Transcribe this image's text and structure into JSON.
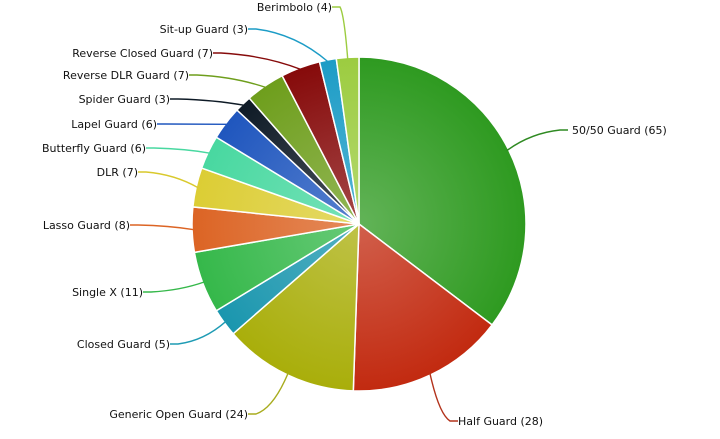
{
  "chart_data": {
    "type": "pie",
    "title": "",
    "start_angle_deg": 0,
    "direction": "clockwise",
    "slices": [
      {
        "label": "50/50 Guard",
        "value": 65,
        "text": "50/50 Guard (65)",
        "color": "#2e9a20",
        "line": "#2f8a22"
      },
      {
        "label": "Half Guard",
        "value": 28,
        "text": "Half Guard (28)",
        "color": "#c22a10",
        "line": "#b3331c"
      },
      {
        "label": "Generic Open Guard",
        "value": 24,
        "text": "Generic Open Guard (24)",
        "color": "#a9ae0a",
        "line": "#a8ac1e"
      },
      {
        "label": "Closed Guard",
        "value": 5,
        "text": "Closed Guard (5)",
        "color": "#1a96ae",
        "line": "#1e9bb4"
      },
      {
        "label": "Single X",
        "value": 11,
        "text": "Single X (11)",
        "color": "#35b84a",
        "line": "#35b84a"
      },
      {
        "label": "Lasso Guard",
        "value": 8,
        "text": "Lasso Guard (8)",
        "color": "#dc6424",
        "line": "#dc6424"
      },
      {
        "label": "DLR",
        "value": 7,
        "text": "DLR (7)",
        "color": "#dccd34",
        "line": "#d9c92c"
      },
      {
        "label": "Butterfly Guard",
        "value": 6,
        "text": "Butterfly Guard (6)",
        "color": "#48d8a0",
        "line": "#48d8a0"
      },
      {
        "label": "Lapel Guard",
        "value": 6,
        "text": "Lapel Guard (6)",
        "color": "#1f56be",
        "line": "#1f56be"
      },
      {
        "label": "Spider Guard",
        "value": 3,
        "text": "Spider Guard (3)",
        "color": "#0e1a26",
        "line": "#0e1a26"
      },
      {
        "label": "Reverse DLR Guard",
        "value": 7,
        "text": "Reverse DLR Guard (7)",
        "color": "#6e9e1c",
        "line": "#6e9e1c"
      },
      {
        "label": "Reverse Closed Guard",
        "value": 7,
        "text": "Reverse Closed Guard (7)",
        "color": "#860a0a",
        "line": "#860a0a"
      },
      {
        "label": "Sit-up Guard",
        "value": 3,
        "text": "Sit-up Guard (3)",
        "color": "#1c9cc6",
        "line": "#1c9cc6"
      },
      {
        "label": "Berimbolo",
        "value": 4,
        "text": "Berimbolo (4)",
        "color": "#9ccc40",
        "line": "#9ccc40"
      }
    ]
  }
}
